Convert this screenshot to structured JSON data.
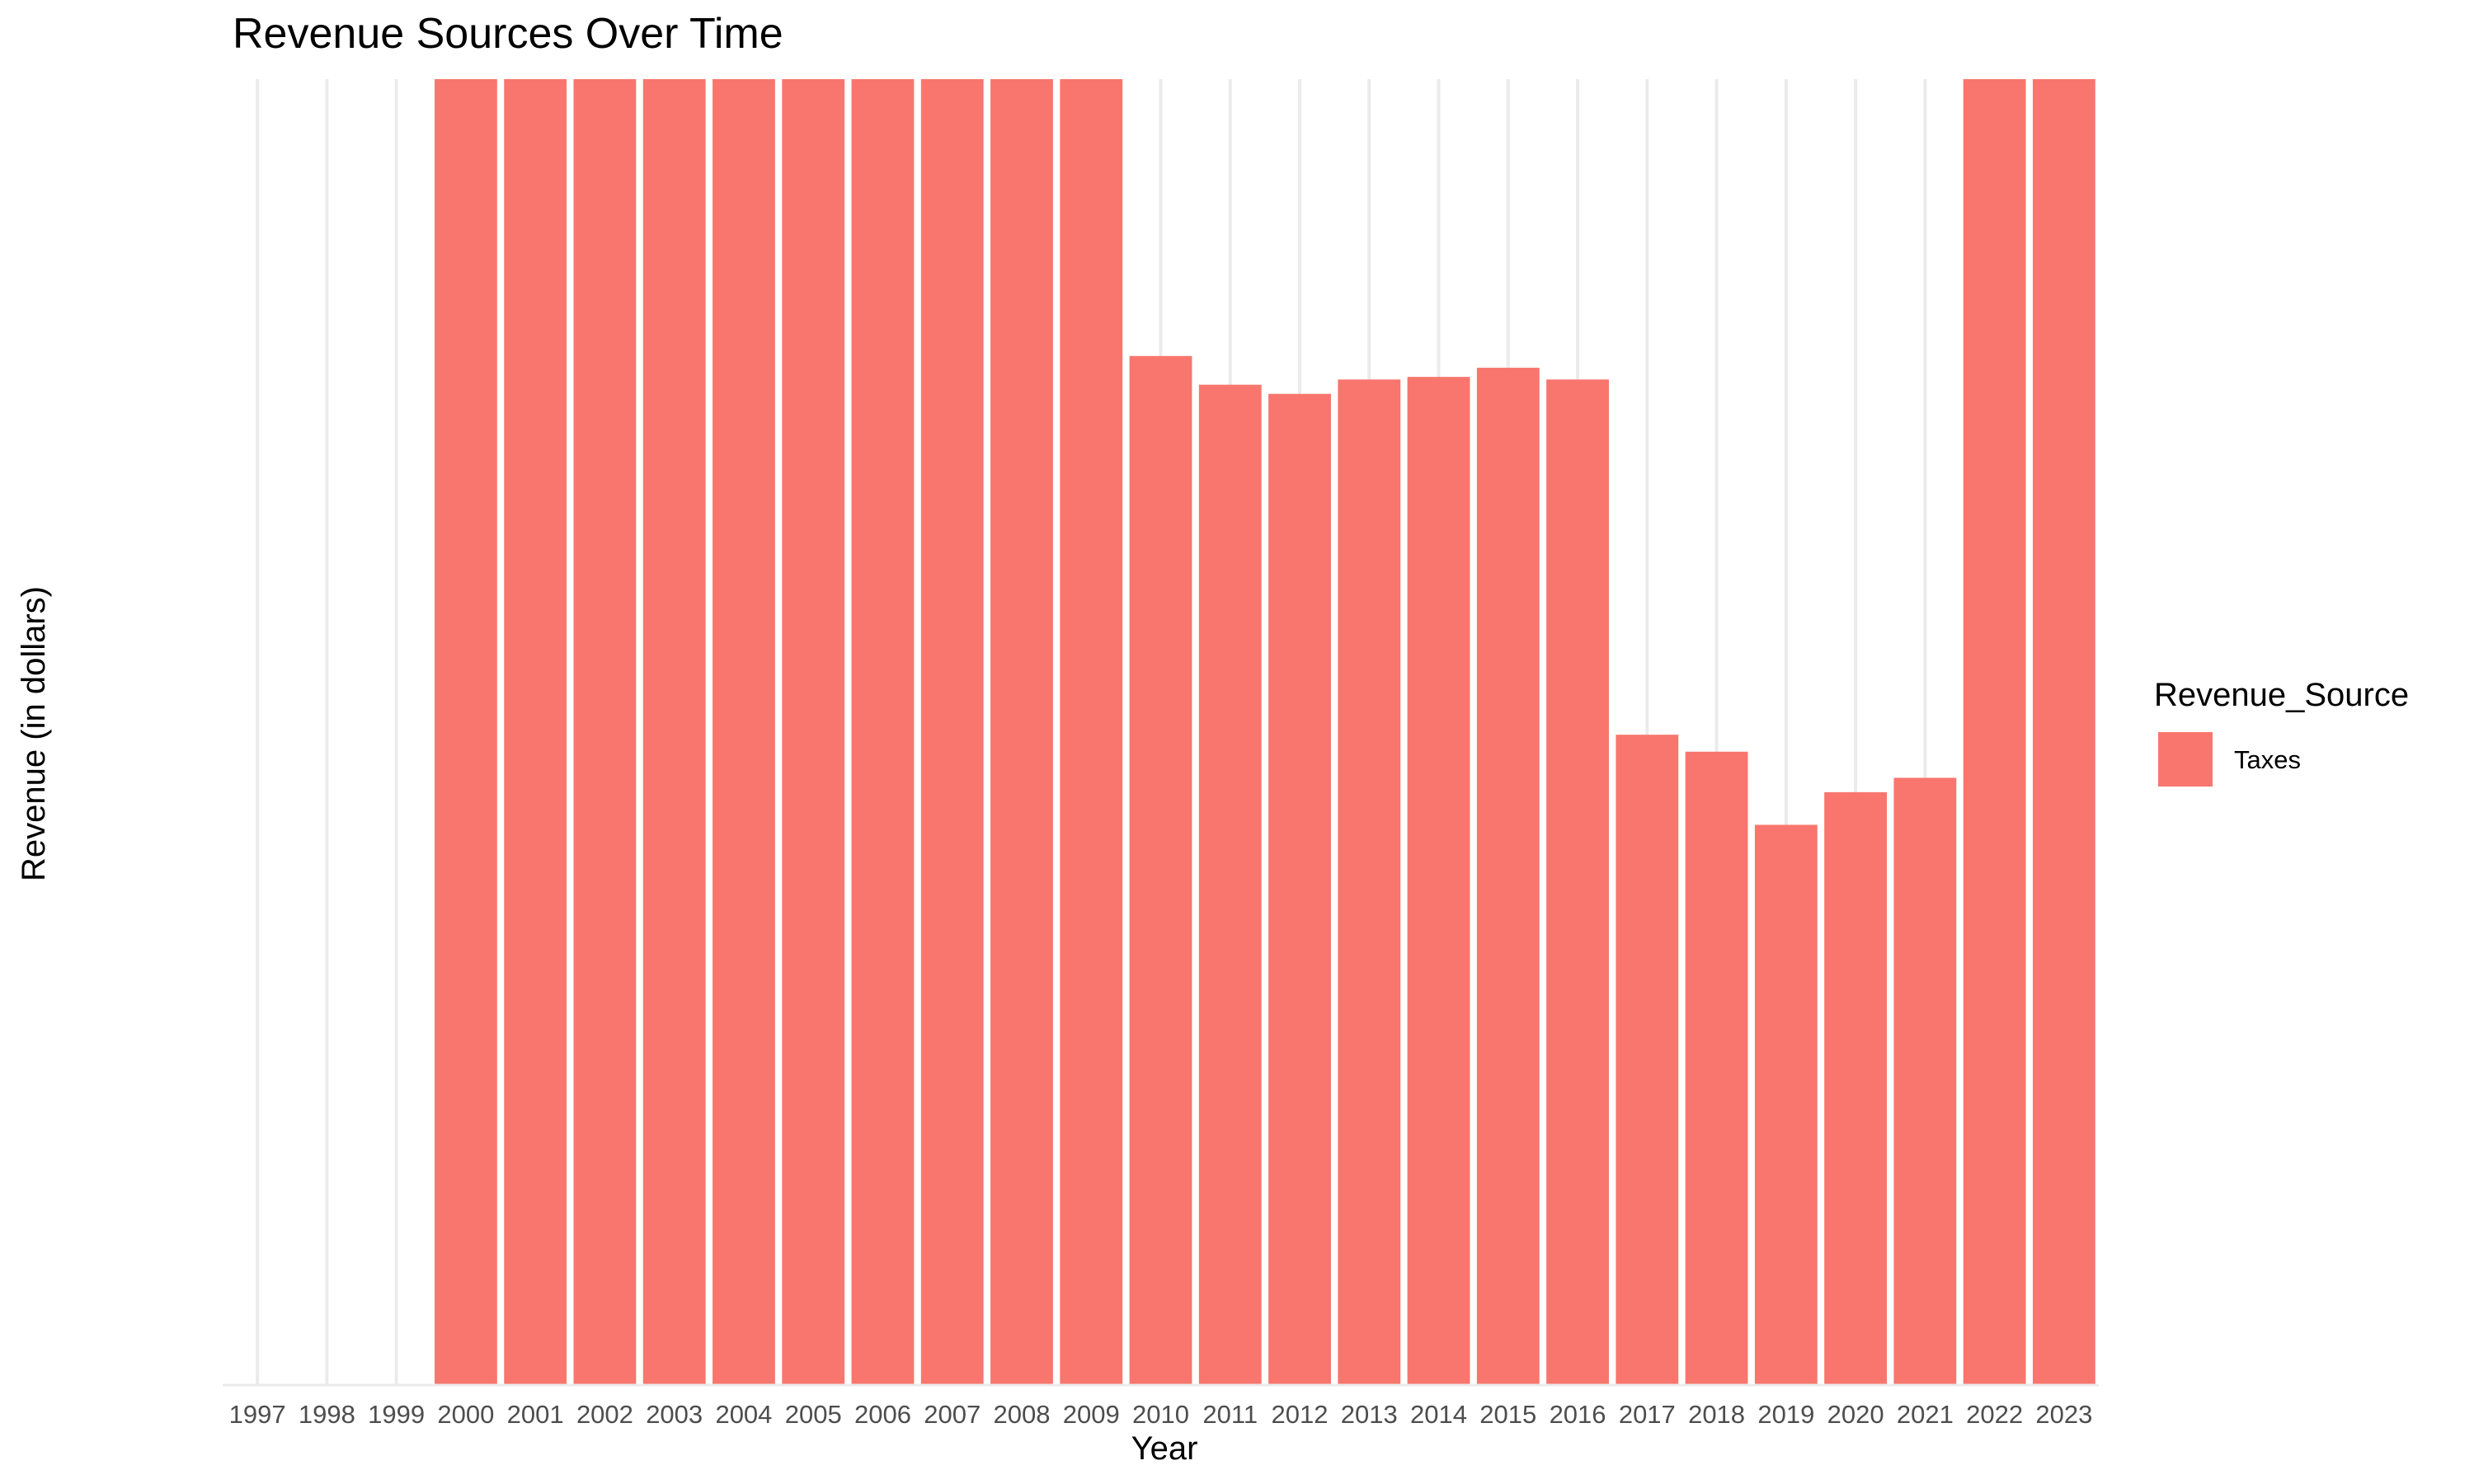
{
  "chart_data": {
    "type": "bar",
    "title": "Revenue Sources Over Time",
    "xlabel": "Year",
    "ylabel": "Revenue (in dollars)",
    "categories": [
      "1997",
      "1998",
      "1999",
      "2000",
      "2001",
      "2002",
      "2003",
      "2004",
      "2005",
      "2006",
      "2007",
      "2008",
      "2009",
      "2010",
      "2011",
      "2012",
      "2013",
      "2014",
      "2015",
      "2016",
      "2017",
      "2018",
      "2019",
      "2020",
      "2021",
      "2022",
      "2023"
    ],
    "series": [
      {
        "name": "Taxes",
        "color": "#F8766D",
        "values": [
          null,
          null,
          null,
          100,
          100,
          100,
          100,
          100,
          100,
          100,
          100,
          100,
          100,
          78.8,
          76.6,
          75.9,
          77.0,
          77.2,
          77.9,
          77.0,
          49.8,
          48.5,
          42.9,
          45.4,
          46.5,
          100,
          100
        ]
      }
    ],
    "ylim": [
      0,
      100
    ],
    "grid": "vertical major lines",
    "legend": {
      "title": "Revenue_Source",
      "position": "right",
      "entries": [
        "Taxes"
      ]
    }
  }
}
